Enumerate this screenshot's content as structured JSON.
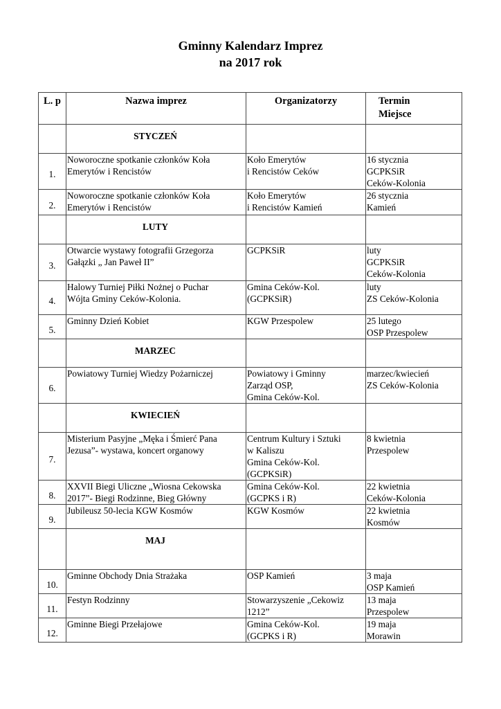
{
  "title_line1": "Gminny Kalendarz Imprez",
  "title_line2": "na 2017 rok",
  "headers": {
    "lp": "L. p",
    "name": "Nazwa imprez",
    "org": "Organizatorzy",
    "term": "Termin\nMiejsce"
  },
  "rows": [
    {
      "type": "month",
      "label": "STYCZEŃ"
    },
    {
      "type": "event",
      "no": "1.",
      "name": "Noworoczne spotkanie członków Koła\nEmerytów i Rencistów",
      "org": "Koło Emerytów\ni Rencistów Ceków",
      "term": "16  stycznia\nGCPKSiR\nCeków-Kolonia"
    },
    {
      "type": "event",
      "no": "2.",
      "name": "Noworoczne spotkanie członków Koła\nEmerytów i Rencistów",
      "org": "Koło Emerytów\ni Rencistów Kamień",
      "term": "26 stycznia\nKamień"
    },
    {
      "type": "month",
      "label": "LUTY"
    },
    {
      "type": "event",
      "no": "3.",
      "name": "Otwarcie wystawy fotografii Grzegorza\nGałązki „ Jan Paweł II”",
      "org": " GCPKSiR",
      "term": "luty\nGCPKSiR\nCeków-Kolonia"
    },
    {
      "type": "event",
      "no": "4.",
      "name": "Halowy Turniej Piłki Nożnej o Puchar\nWójta Gminy Ceków-Kolonia.",
      "org": "Gmina Ceków-Kol.\n(GCPKSiR)",
      "term": "luty\nZS Ceków-Kolonia"
    },
    {
      "type": "event",
      "no": "5.",
      "name": "Gminny Dzień Kobiet",
      "org": "KGW Przespolew",
      "term": "25 lutego\nOSP Przespolew"
    },
    {
      "type": "month",
      "label": "MARZEC"
    },
    {
      "type": "event",
      "no": "6.",
      "name": "Powiatowy Turniej  Wiedzy Pożarniczej",
      "org": "Powiatowy i Gminny\nZarząd OSP,\nGmina Ceków-Kol.",
      "term": "marzec/kwiecień\nZS Ceków-Kolonia"
    },
    {
      "type": "month",
      "label": "KWIECIEŃ"
    },
    {
      "type": "event",
      "no": "7.",
      "name": "Misterium Pasyjne „Męka i Śmierć Pana\nJezusa”- wystawa, koncert organowy",
      "org": "Centrum Kultury i Sztuki\nw Kaliszu\nGmina Ceków-Kol.\n(GCPKSiR)",
      "term": "8 kwietnia\nPrzespolew"
    },
    {
      "type": "event",
      "no": "8.",
      "name": "XXVII Biegi Uliczne „Wiosna Cekowska\n2017”-  Biegi Rodzinne, Bieg Główny",
      "org": "Gmina Ceków-Kol.\n(GCPKS i R)",
      "term": "22  kwietnia\nCeków-Kolonia"
    },
    {
      "type": "event",
      "no": "9.",
      "name": "Jubileusz 50-lecia KGW Kosmów",
      "org": "KGW Kosmów",
      "term": "22 kwietnia\nKosmów"
    },
    {
      "type": "month",
      "label": "MAJ"
    },
    {
      "type": "event",
      "no": "10.",
      "name": "Gminne Obchody Dnia Strażaka",
      "org": "OSP Kamień",
      "term": " 3 maja\nOSP Kamień"
    },
    {
      "type": "event",
      "no": "11.",
      "name": "Festyn Rodzinny",
      "org": "Stowarzyszenie „Cekowiz\n1212”",
      "term": "13 maja\nPrzespolew"
    },
    {
      "type": "event",
      "no": "12.",
      "name": "Gminne Biegi Przełajowe",
      "org": "Gmina Ceków-Kol.\n(GCPKS i R)",
      "term": "19 maja\nMorawin"
    }
  ]
}
